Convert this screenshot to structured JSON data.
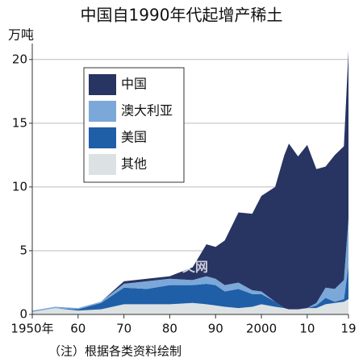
{
  "chart_data": {
    "type": "stacked_area",
    "title": "中国自1990年代起增产稀土",
    "y_label": "万吨",
    "note": "（注）根据各类资料绘制",
    "watermark": "日经中文网",
    "x": [
      1950,
      1955,
      1960,
      1965,
      1970,
      1975,
      1980,
      1985,
      1988,
      1990,
      1992,
      1995,
      1998,
      2000,
      2003,
      2005,
      2006,
      2008,
      2010,
      2012,
      2014,
      2016,
      2018,
      2019
    ],
    "series": [
      {
        "name": "中国",
        "color": "#283462",
        "values": [
          0,
          0,
          0,
          0,
          0.2,
          0.2,
          0.2,
          1.0,
          2.5,
          2.5,
          3.5,
          5.5,
          6.0,
          7.5,
          9.0,
          12.0,
          13.0,
          12.0,
          12.8,
          10.5,
          9.5,
          10.5,
          10.5,
          13.2
        ]
      },
      {
        "name": "澳大利亚",
        "color": "#7ba8d8",
        "values": [
          0.1,
          0.1,
          0.1,
          0.1,
          0.3,
          0.6,
          0.5,
          0.4,
          0.6,
          0.5,
          0.5,
          0.5,
          0.3,
          0.2,
          0,
          0,
          0,
          0,
          0,
          0.2,
          0.8,
          1.0,
          1.5,
          3.7
        ]
      },
      {
        "name": "美国",
        "color": "#1f5fa8",
        "values": [
          0,
          0,
          0.1,
          0.5,
          1.3,
          1.2,
          1.5,
          1.4,
          1.6,
          1.6,
          1.2,
          1.5,
          1.0,
          0.8,
          0.4,
          0,
          0,
          0,
          0,
          0.2,
          0.5,
          0.1,
          0.2,
          2.6
        ]
      },
      {
        "name": "其他",
        "color": "#dce1e3",
        "values": [
          0.2,
          0.5,
          0.3,
          0.4,
          0.8,
          0.8,
          0.8,
          0.9,
          0.8,
          0.7,
          0.6,
          0.5,
          0.6,
          0.8,
          0.6,
          0.5,
          0.4,
          0.4,
          0.5,
          0.5,
          0.8,
          0.9,
          1.0,
          1.2
        ]
      }
    ],
    "xlim": [
      1950,
      2019
    ],
    "xticks": [
      {
        "value": 1950,
        "label": "1950年"
      },
      {
        "value": 1960,
        "label": "60"
      },
      {
        "value": 1970,
        "label": "70"
      },
      {
        "value": 1980,
        "label": "80"
      },
      {
        "value": 1990,
        "label": "90"
      },
      2000,
      {
        "value": 2010,
        "label": "10"
      },
      {
        "value": 2019,
        "label": "19"
      }
    ],
    "ylim": [
      0,
      21
    ],
    "yticks": [
      0,
      5,
      10,
      15,
      20
    ],
    "grid": true
  }
}
